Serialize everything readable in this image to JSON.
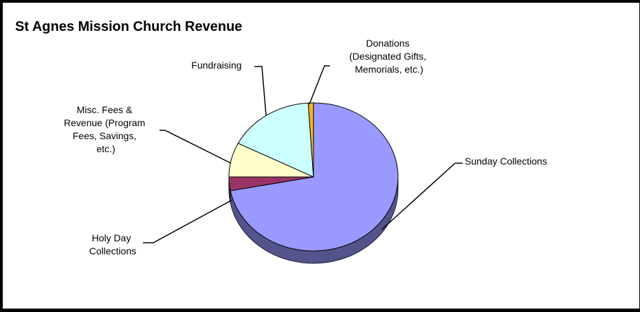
{
  "chart_data": {
    "type": "pie",
    "title": "St Agnes Mission Church Revenue",
    "style": "3d",
    "slices": [
      {
        "label": "Sunday Collections",
        "value": 72,
        "color": "#9999ff"
      },
      {
        "label": "Holy Day Collections",
        "value": 3,
        "color": "#993366"
      },
      {
        "label": "Misc. Fees & Revenue (Program Fees, Savings, etc.)",
        "value": 7.5,
        "color": "#ffffcc"
      },
      {
        "label": "Fundraising",
        "value": 16.5,
        "color": "#ccffff"
      },
      {
        "label": "Donations (Designated Gifts, Memorials, etc.)",
        "value": 1,
        "color": "#f0b429"
      }
    ],
    "label_lines": {
      "sunday": [
        "Sunday Collections"
      ],
      "holy": [
        "Holy Day",
        "Collections"
      ],
      "misc": [
        "Misc. Fees &",
        "Revenue (Program",
        "Fees, Savings,",
        "etc.)"
      ],
      "fund": [
        "Fundraising"
      ],
      "don": [
        "Donations",
        "(Designated Gifts,",
        "Memorials, etc.)"
      ]
    }
  }
}
